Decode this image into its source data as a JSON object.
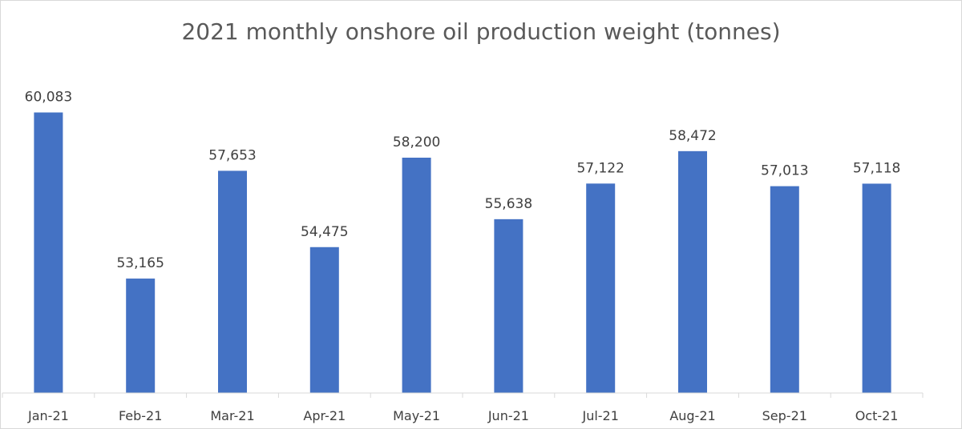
{
  "chart_data": {
    "type": "bar",
    "title": "2021 monthly onshore oil production weight (tonnes)",
    "xlabel": "",
    "ylabel": "",
    "categories": [
      "Jan-21",
      "Feb-21",
      "Mar-21",
      "Apr-21",
      "May-21",
      "Jun-21",
      "Jul-21",
      "Aug-21",
      "Sep-21",
      "Oct-21"
    ],
    "values": [
      60083,
      53165,
      57653,
      54475,
      58200,
      55638,
      57122,
      58472,
      57013,
      57118
    ],
    "value_labels": [
      "60,083",
      "53,165",
      "57,653",
      "54,475",
      "58,200",
      "55,638",
      "57,122",
      "58,472",
      "57,013",
      "57,118"
    ],
    "ylim": [
      48400,
      61400
    ],
    "grid": false,
    "legend": "none",
    "bar_color": "#4472C4",
    "axis_color": "#d9d9d9"
  }
}
